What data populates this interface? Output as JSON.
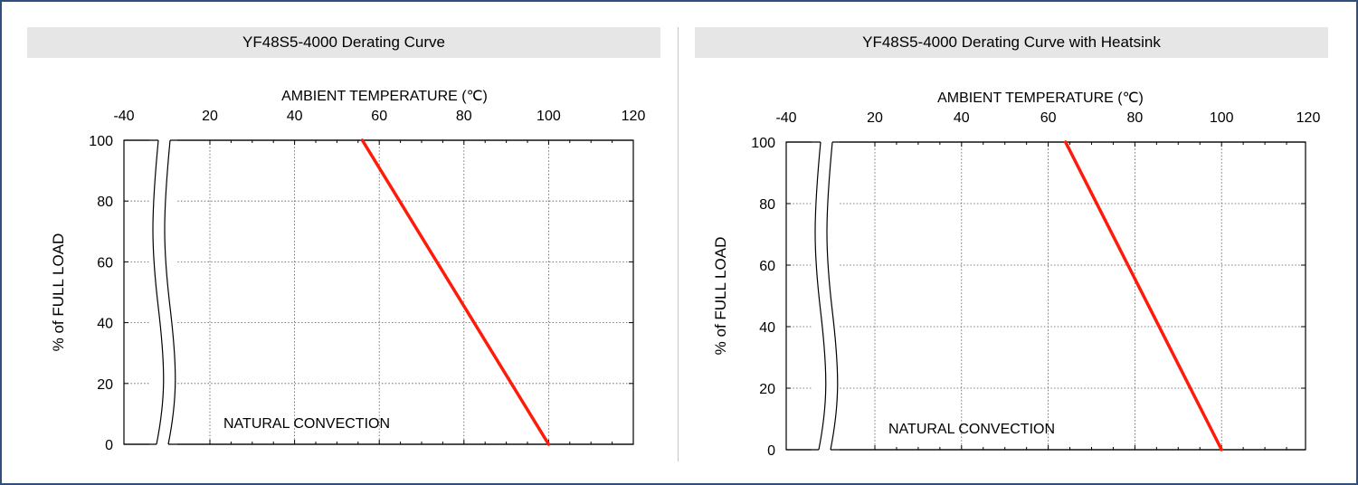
{
  "chart_data": [
    {
      "type": "line",
      "title": "YF48S5-4000 Derating Curve",
      "xlabel": "AMBIENT TEMPERATURE (℃)",
      "ylabel": "% of FULL LOAD",
      "x_ticks": [
        -40,
        20,
        40,
        60,
        80,
        100,
        120
      ],
      "y_ticks": [
        0,
        20,
        40,
        60,
        80,
        100
      ],
      "xlim": [
        -40,
        120
      ],
      "ylim": [
        0,
        100
      ],
      "axis_break": true,
      "grid": true,
      "annotation": "NATURAL CONVECTION",
      "line_color": "#ff1a0a",
      "series": [
        {
          "x": [
            56,
            100
          ],
          "y": [
            100,
            0
          ]
        }
      ]
    },
    {
      "type": "line",
      "title": "YF48S5-4000 Derating Curve with Heatsink",
      "xlabel": "AMBIENT TEMPERATURE (℃)",
      "ylabel": "% of FULL LOAD",
      "x_ticks": [
        -40,
        20,
        40,
        60,
        80,
        100,
        120
      ],
      "y_ticks": [
        0,
        20,
        40,
        60,
        80,
        100
      ],
      "xlim": [
        -40,
        120
      ],
      "ylim": [
        0,
        100
      ],
      "axis_break": true,
      "grid": true,
      "annotation": "NATURAL CONVECTION",
      "line_color": "#ff1a0a",
      "series": [
        {
          "x": [
            64,
            100
          ],
          "y": [
            100,
            0
          ]
        }
      ]
    }
  ]
}
